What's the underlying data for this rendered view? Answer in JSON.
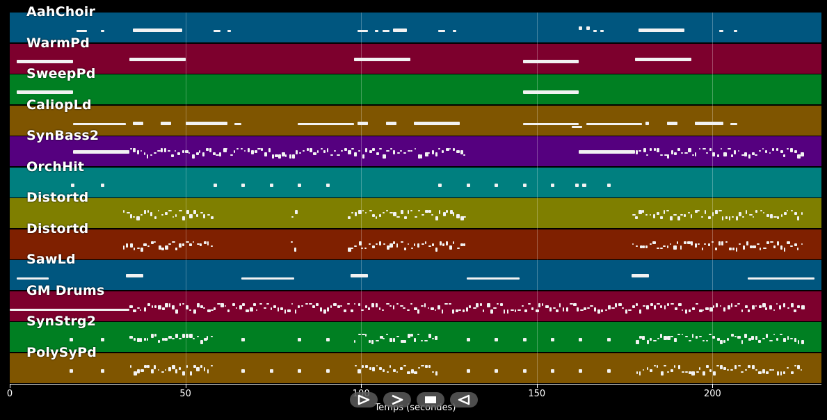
{
  "colors": {
    "background": "#000000",
    "aahchoir": "#00567f",
    "warmpd": "#7d002d",
    "sweeppd": "#007f22",
    "caliopld": "#7f5500",
    "synbass2": "#55007f",
    "orchhit": "#007f7f",
    "distortd1": "#7f7f00",
    "distortd2": "#7f2000",
    "note": "#f2f2f2"
  },
  "chart_data": {
    "type": "piano-roll",
    "xlabel": "Temps (secondes)",
    "xlim": [
      0,
      231
    ],
    "xticks": [
      0,
      50,
      100,
      150,
      200
    ],
    "xtick_labels": [
      "0",
      "50",
      "100",
      "150",
      "200"
    ],
    "tracks": [
      {
        "name": "AahChoir",
        "color": "#00567f",
        "notes": [
          [
            19,
            22,
            "lo"
          ],
          [
            26,
            27,
            "lo"
          ],
          [
            35,
            49,
            "mid"
          ],
          [
            58,
            60,
            "lo"
          ],
          [
            62,
            63,
            "lo"
          ],
          [
            99,
            102,
            "lo"
          ],
          [
            104,
            105,
            "lo"
          ],
          [
            106,
            108,
            "lo"
          ],
          [
            109,
            113,
            "mid"
          ],
          [
            122,
            124,
            "lo"
          ],
          [
            126,
            127,
            "lo"
          ],
          [
            162,
            163,
            "hi"
          ],
          [
            164,
            165,
            "hi"
          ],
          [
            166,
            167,
            "lo"
          ],
          [
            168,
            169,
            "lo"
          ],
          [
            179,
            192,
            "mid"
          ],
          [
            202,
            203,
            "lo"
          ],
          [
            206,
            207,
            "lo"
          ]
        ]
      },
      {
        "name": "WarmPd",
        "color": "#7d002d",
        "notes": [
          [
            2,
            18,
            "mid"
          ],
          [
            34,
            50,
            "hi"
          ],
          [
            98,
            114,
            "hi"
          ],
          [
            146,
            162,
            "mid"
          ],
          [
            178,
            194,
            "hi"
          ]
        ]
      },
      {
        "name": "SweepPd",
        "color": "#007f22",
        "notes": [
          [
            2,
            18,
            "mid"
          ],
          [
            146,
            162,
            "mid"
          ]
        ]
      },
      {
        "name": "CaliopLd",
        "color": "#7f5500",
        "notes": [
          [
            18,
            33,
            "lo"
          ],
          [
            35,
            38,
            "mid"
          ],
          [
            43,
            46,
            "mid"
          ],
          [
            50,
            62,
            "mid"
          ],
          [
            64,
            66,
            "lo"
          ],
          [
            82,
            98,
            "lo"
          ],
          [
            99,
            102,
            "mid"
          ],
          [
            107,
            110,
            "mid"
          ],
          [
            115,
            128,
            "mid"
          ],
          [
            146,
            162,
            "lo"
          ],
          [
            160,
            163,
            "low2"
          ],
          [
            164,
            180,
            "lo"
          ],
          [
            181,
            182,
            "mid"
          ],
          [
            187,
            190,
            "mid"
          ],
          [
            195,
            203,
            "mid"
          ],
          [
            205,
            207,
            "lo"
          ]
        ]
      },
      {
        "name": "SynBass2",
        "color": "#55007f",
        "notes": [
          [
            18,
            34,
            "hi"
          ],
          [
            34,
            98,
            "mix"
          ],
          [
            98,
            130,
            "mix"
          ],
          [
            162,
            178,
            "hi"
          ],
          [
            178,
            226,
            "mix"
          ]
        ]
      },
      {
        "name": "OrchHit",
        "color": "#007f7f",
        "notes": [
          [
            17.5,
            18.5,
            "mid"
          ],
          [
            26,
            27,
            "mid"
          ],
          [
            58,
            59,
            "mid"
          ],
          [
            66,
            67,
            "mid"
          ],
          [
            74,
            75,
            "mid"
          ],
          [
            82,
            83,
            "mid"
          ],
          [
            90,
            91,
            "mid"
          ],
          [
            122,
            123,
            "mid"
          ],
          [
            130,
            131,
            "mid"
          ],
          [
            138,
            139,
            "mid"
          ],
          [
            146,
            147,
            "mid"
          ],
          [
            154,
            155,
            "mid"
          ],
          [
            161,
            162,
            "mid"
          ],
          [
            163,
            164,
            "mid"
          ],
          [
            170,
            171,
            "mid"
          ]
        ]
      },
      {
        "name": "Distortd",
        "color": "#7f7f00",
        "notes": [
          [
            32,
            58,
            "mix"
          ],
          [
            80,
            82,
            "mix"
          ],
          [
            96,
            130,
            "mix"
          ],
          [
            177,
            226,
            "mix"
          ]
        ]
      },
      {
        "name": "Distortd",
        "color": "#7f2000",
        "notes": [
          [
            32,
            58,
            "mix"
          ],
          [
            80,
            82,
            "mix"
          ],
          [
            96,
            130,
            "mix"
          ],
          [
            177,
            226,
            "mix"
          ]
        ]
      },
      {
        "name": "SawLd",
        "color": "#00567f",
        "notes": [
          [
            2,
            11,
            "lo"
          ],
          [
            33,
            38,
            "hi"
          ],
          [
            66,
            81,
            "lo"
          ],
          [
            97,
            102,
            "hi"
          ],
          [
            130,
            145,
            "lo"
          ],
          [
            177,
            182,
            "hi"
          ],
          [
            210,
            229,
            "lo"
          ]
        ]
      },
      {
        "name": "GM Drums",
        "color": "#7d002d",
        "notes": [
          [
            0,
            34,
            "lo"
          ],
          [
            34,
            58,
            "mix"
          ],
          [
            58,
            98,
            "mix"
          ],
          [
            98,
            178,
            "mix"
          ],
          [
            178,
            226,
            "mix"
          ]
        ]
      },
      {
        "name": "SynStrg2",
        "color": "#007f22",
        "notes": [
          [
            17,
            18,
            "mid"
          ],
          [
            26,
            27,
            "mid"
          ],
          [
            34,
            58,
            "mix"
          ],
          [
            66,
            67,
            "mid"
          ],
          [
            82,
            83,
            "mid"
          ],
          [
            90,
            91,
            "mid"
          ],
          [
            98,
            122,
            "mix"
          ],
          [
            130,
            131,
            "mid"
          ],
          [
            138,
            139,
            "mid"
          ],
          [
            146,
            147,
            "mid"
          ],
          [
            154,
            155,
            "mid"
          ],
          [
            162,
            163,
            "mid"
          ],
          [
            170,
            171,
            "mid"
          ],
          [
            178,
            226,
            "mix"
          ]
        ]
      },
      {
        "name": "PolySyPd",
        "color": "#7f5500",
        "notes": [
          [
            17,
            18,
            "mid"
          ],
          [
            26,
            27,
            "mid"
          ],
          [
            34,
            58,
            "mix"
          ],
          [
            66,
            67,
            "mid"
          ],
          [
            74,
            75,
            "mid"
          ],
          [
            82,
            83,
            "mid"
          ],
          [
            90,
            91,
            "mid"
          ],
          [
            98,
            122,
            "mix"
          ],
          [
            130,
            131,
            "mid"
          ],
          [
            138,
            139,
            "mid"
          ],
          [
            146,
            147,
            "mid"
          ],
          [
            154,
            155,
            "mid"
          ],
          [
            162,
            163,
            "mid"
          ],
          [
            170,
            171,
            "mid"
          ],
          [
            178,
            226,
            "mix"
          ]
        ]
      }
    ]
  },
  "controls": {
    "buttons": [
      "play",
      "fast-forward",
      "stop",
      "rewind"
    ]
  }
}
